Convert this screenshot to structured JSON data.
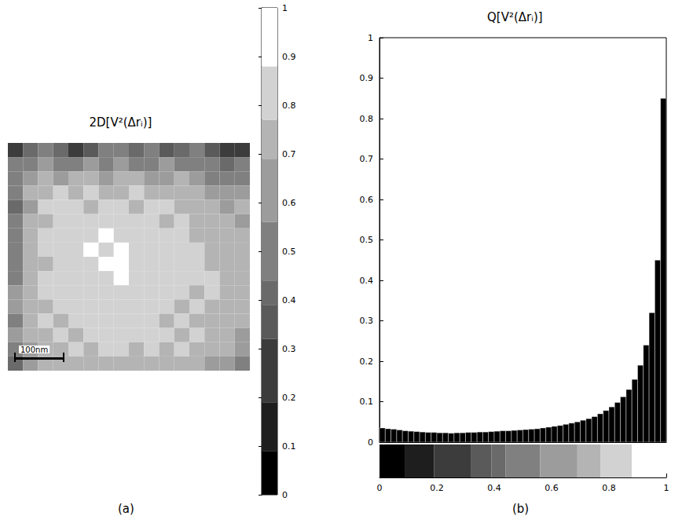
{
  "chart_data": [
    {
      "type": "heatmap",
      "title": "2D[V²(Δrᵢ)]",
      "panel": "(a)",
      "scale_bar": "100nm",
      "tick_labels": false,
      "cells": [
        [
          0.3,
          0.4,
          0.45,
          0.4,
          0.3,
          0.35,
          0.5,
          0.45,
          0.4,
          0.45,
          0.35,
          0.4,
          0.5,
          0.35,
          0.25,
          0.3
        ],
        [
          0.45,
          0.55,
          0.6,
          0.5,
          0.5,
          0.6,
          0.55,
          0.6,
          0.55,
          0.5,
          0.6,
          0.55,
          0.45,
          0.5,
          0.4,
          0.45
        ],
        [
          0.5,
          0.65,
          0.7,
          0.65,
          0.7,
          0.7,
          0.65,
          0.7,
          0.7,
          0.65,
          0.6,
          0.7,
          0.6,
          0.55,
          0.5,
          0.55
        ],
        [
          0.45,
          0.7,
          0.75,
          0.8,
          0.7,
          0.8,
          0.75,
          0.7,
          0.8,
          0.75,
          0.7,
          0.75,
          0.7,
          0.6,
          0.6,
          0.6
        ],
        [
          0.4,
          0.65,
          0.8,
          0.8,
          0.8,
          0.75,
          0.8,
          0.85,
          0.75,
          0.8,
          0.8,
          0.75,
          0.7,
          0.7,
          0.65,
          0.7
        ],
        [
          0.45,
          0.7,
          0.75,
          0.8,
          0.85,
          0.8,
          0.8,
          0.8,
          0.85,
          0.8,
          0.75,
          0.8,
          0.75,
          0.7,
          0.7,
          0.65
        ],
        [
          0.5,
          0.75,
          0.8,
          0.85,
          0.8,
          0.85,
          0.9,
          0.85,
          0.8,
          0.85,
          0.8,
          0.8,
          0.75,
          0.75,
          0.7,
          0.7
        ],
        [
          0.55,
          0.75,
          0.8,
          0.8,
          0.85,
          0.9,
          0.85,
          0.9,
          0.85,
          0.8,
          0.85,
          0.8,
          0.8,
          0.75,
          0.7,
          0.75
        ],
        [
          0.5,
          0.7,
          0.75,
          0.8,
          0.85,
          0.85,
          0.9,
          0.9,
          0.85,
          0.85,
          0.8,
          0.85,
          0.8,
          0.75,
          0.75,
          0.7
        ],
        [
          0.55,
          0.7,
          0.8,
          0.85,
          0.8,
          0.85,
          0.85,
          0.9,
          0.85,
          0.8,
          0.85,
          0.8,
          0.8,
          0.8,
          0.7,
          0.75
        ],
        [
          0.6,
          0.75,
          0.8,
          0.8,
          0.85,
          0.8,
          0.85,
          0.85,
          0.8,
          0.85,
          0.8,
          0.8,
          0.75,
          0.8,
          0.75,
          0.7
        ],
        [
          0.6,
          0.75,
          0.75,
          0.8,
          0.8,
          0.85,
          0.8,
          0.85,
          0.85,
          0.8,
          0.8,
          0.75,
          0.8,
          0.75,
          0.7,
          0.75
        ],
        [
          0.55,
          0.7,
          0.8,
          0.75,
          0.8,
          0.8,
          0.85,
          0.8,
          0.8,
          0.85,
          0.75,
          0.8,
          0.75,
          0.7,
          0.75,
          0.7
        ],
        [
          0.6,
          0.75,
          0.75,
          0.8,
          0.75,
          0.8,
          0.8,
          0.85,
          0.8,
          0.8,
          0.8,
          0.75,
          0.8,
          0.75,
          0.7,
          0.65
        ],
        [
          0.5,
          0.65,
          0.7,
          0.75,
          0.8,
          0.75,
          0.8,
          0.8,
          0.75,
          0.8,
          0.75,
          0.8,
          0.75,
          0.7,
          0.7,
          0.6
        ],
        [
          0.4,
          0.6,
          0.7,
          0.7,
          0.75,
          0.7,
          0.75,
          0.75,
          0.7,
          0.75,
          0.7,
          0.7,
          0.7,
          0.65,
          0.6,
          0.55
        ]
      ],
      "colorbar": {
        "range": [
          0,
          1
        ],
        "ticks": [
          0,
          0.1,
          0.2,
          0.3,
          0.4,
          0.5,
          0.6,
          0.7,
          0.8,
          0.9,
          1
        ],
        "pieces": [
          {
            "min": 0,
            "max": 0.09,
            "color": "#000000"
          },
          {
            "min": 0.09,
            "max": 0.19,
            "color": "#1e1e1e"
          },
          {
            "min": 0.19,
            "max": 0.32,
            "color": "#3c3c3c"
          },
          {
            "min": 0.32,
            "max": 0.39,
            "color": "#5a5a5a"
          },
          {
            "min": 0.39,
            "max": 0.44,
            "color": "#6a6a6a"
          },
          {
            "min": 0.44,
            "max": 0.56,
            "color": "#808080"
          },
          {
            "min": 0.56,
            "max": 0.69,
            "color": "#9c9c9c"
          },
          {
            "min": 0.69,
            "max": 0.77,
            "color": "#b4b4b4"
          },
          {
            "min": 0.77,
            "max": 0.88,
            "color": "#d2d2d2"
          },
          {
            "min": 0.88,
            "max": 1,
            "color": "#ffffff"
          }
        ]
      }
    },
    {
      "type": "histogram",
      "title": "Q[V²(Δrᵢ)]",
      "panel": "(b)",
      "color": "#000000",
      "bins": [
        0,
        0.02,
        0.04,
        0.06,
        0.08,
        0.1,
        0.12,
        0.14,
        0.16,
        0.18,
        0.2,
        0.22,
        0.24,
        0.26,
        0.28,
        0.3,
        0.32,
        0.34,
        0.36,
        0.38,
        0.4,
        0.42,
        0.44,
        0.46,
        0.48,
        0.5,
        0.52,
        0.54,
        0.56,
        0.58,
        0.6,
        0.62,
        0.64,
        0.66,
        0.68,
        0.7,
        0.72,
        0.74,
        0.76,
        0.78,
        0.8,
        0.82,
        0.84,
        0.86,
        0.88,
        0.9,
        0.92,
        0.94,
        0.96,
        0.98,
        1
      ],
      "values": [
        0.035,
        0.033,
        0.032,
        0.03,
        0.028,
        0.027,
        0.026,
        0.025,
        0.024,
        0.024,
        0.023,
        0.023,
        0.022,
        0.023,
        0.023,
        0.024,
        0.024,
        0.025,
        0.025,
        0.026,
        0.027,
        0.028,
        0.028,
        0.029,
        0.03,
        0.031,
        0.032,
        0.033,
        0.035,
        0.037,
        0.039,
        0.041,
        0.044,
        0.047,
        0.05,
        0.054,
        0.058,
        0.063,
        0.07,
        0.078,
        0.087,
        0.098,
        0.112,
        0.13,
        0.155,
        0.19,
        0.24,
        0.32,
        0.45,
        0.85
      ],
      "xlim": [
        0,
        1
      ],
      "xticks": [
        0,
        0.2,
        0.4,
        0.6,
        0.8,
        1
      ],
      "ylim": [
        0,
        1
      ],
      "yticks": [
        0,
        0.1,
        0.2,
        0.3,
        0.4,
        0.5,
        0.6,
        0.7,
        0.8,
        0.9,
        1
      ]
    }
  ]
}
